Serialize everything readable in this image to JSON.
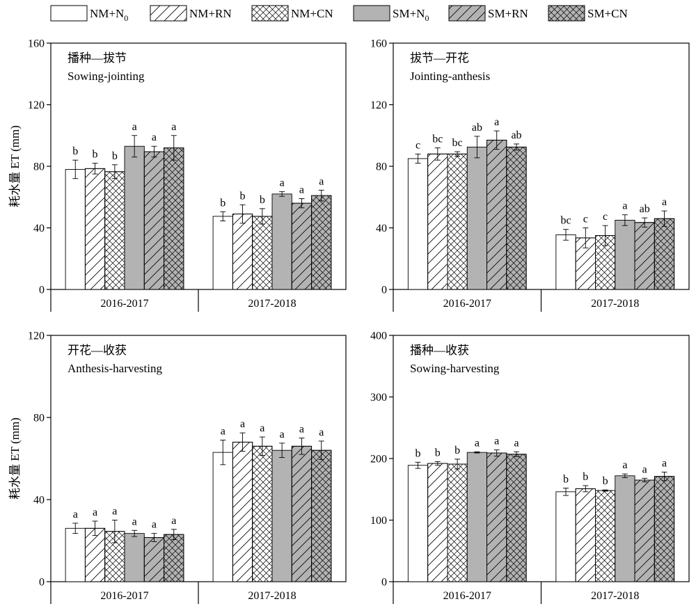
{
  "legend": [
    {
      "name": "NM+N",
      "sub": "0",
      "fill": "white"
    },
    {
      "name": "NM+RN",
      "sub": "",
      "fill": "hatch-white"
    },
    {
      "name": "NM+CN",
      "sub": "",
      "fill": "cross-white"
    },
    {
      "name": "SM+N",
      "sub": "0",
      "fill": "gray"
    },
    {
      "name": "SM+RN",
      "sub": "",
      "fill": "hatch-gray"
    },
    {
      "name": "SM+CN",
      "sub": "",
      "fill": "cross-gray"
    }
  ],
  "colors": {
    "gray_fill": "#b3b3b3",
    "axis": "#000000",
    "background": "#ffffff"
  },
  "chart_data": [
    {
      "type": "bar",
      "title": "播种—拔节",
      "subtitle": "Sowing-jointing",
      "ylabel": "耗水量 ET (mm)",
      "ylim": [
        0,
        160
      ],
      "yticks": [
        0,
        40,
        80,
        120,
        160
      ],
      "categories": [
        "2016-2017",
        "2017-2018"
      ],
      "series": [
        {
          "name": "NM+N0",
          "values": [
            78,
            47.5
          ],
          "errors": [
            6,
            3
          ],
          "letters": [
            "b",
            "b"
          ]
        },
        {
          "name": "NM+RN",
          "values": [
            78.5,
            49
          ],
          "errors": [
            3.5,
            6
          ],
          "letters": [
            "b",
            "b"
          ]
        },
        {
          "name": "NM+CN",
          "values": [
            76.5,
            47.5
          ],
          "errors": [
            4.5,
            5
          ],
          "letters": [
            "b",
            "b"
          ]
        },
        {
          "name": "SM+N0",
          "values": [
            93,
            62
          ],
          "errors": [
            7,
            1.5
          ],
          "letters": [
            "a",
            "a"
          ]
        },
        {
          "name": "SM+RN",
          "values": [
            89.5,
            56
          ],
          "errors": [
            3.5,
            3
          ],
          "letters": [
            "a",
            "a"
          ]
        },
        {
          "name": "SM+CN",
          "values": [
            92,
            61
          ],
          "errors": [
            8,
            3.5
          ],
          "letters": [
            "a",
            "a"
          ]
        }
      ]
    },
    {
      "type": "bar",
      "title": "拔节—开花",
      "subtitle": "Jointing-anthesis",
      "ylabel": "",
      "ylim": [
        0,
        160
      ],
      "yticks": [
        0,
        40,
        80,
        120,
        160
      ],
      "categories": [
        "2016-2017",
        "2017-2018"
      ],
      "series": [
        {
          "name": "NM+N0",
          "values": [
            85,
            35.5
          ],
          "errors": [
            3,
            3.5
          ],
          "letters": [
            "c",
            "bc"
          ]
        },
        {
          "name": "NM+RN",
          "values": [
            88,
            33.5
          ],
          "errors": [
            4,
            6.5
          ],
          "letters": [
            "bc",
            "c"
          ]
        },
        {
          "name": "NM+CN",
          "values": [
            88,
            35
          ],
          "errors": [
            1.5,
            6.5
          ],
          "letters": [
            "bc",
            "c"
          ]
        },
        {
          "name": "SM+N0",
          "values": [
            92.5,
            45
          ],
          "errors": [
            7,
            3.5
          ],
          "letters": [
            "ab",
            "a"
          ]
        },
        {
          "name": "SM+RN",
          "values": [
            97,
            43.5
          ],
          "errors": [
            6,
            3
          ],
          "letters": [
            "a",
            "ab"
          ]
        },
        {
          "name": "SM+CN",
          "values": [
            92.5,
            46
          ],
          "errors": [
            2,
            5
          ],
          "letters": [
            "ab",
            "a"
          ]
        }
      ]
    },
    {
      "type": "bar",
      "title": "开花—收获",
      "subtitle": "Anthesis-harvesting",
      "ylabel": "耗水量 ET (mm)",
      "ylim": [
        0,
        120
      ],
      "yticks": [
        0,
        40,
        80,
        120
      ],
      "categories": [
        "2016-2017",
        "2017-2018"
      ],
      "series": [
        {
          "name": "NM+N0",
          "values": [
            26,
            63
          ],
          "errors": [
            2.5,
            6
          ],
          "letters": [
            "a",
            "a"
          ]
        },
        {
          "name": "NM+RN",
          "values": [
            26,
            68
          ],
          "errors": [
            3.5,
            4.5
          ],
          "letters": [
            "a",
            "a"
          ]
        },
        {
          "name": "NM+CN",
          "values": [
            24.5,
            66
          ],
          "errors": [
            5.5,
            4.5
          ],
          "letters": [
            "a",
            "a"
          ]
        },
        {
          "name": "SM+N0",
          "values": [
            23.5,
            64
          ],
          "errors": [
            1.5,
            3.5
          ],
          "letters": [
            "a",
            "a"
          ]
        },
        {
          "name": "SM+RN",
          "values": [
            21.5,
            66
          ],
          "errors": [
            2,
            4
          ],
          "letters": [
            "a",
            "a"
          ]
        },
        {
          "name": "SM+CN",
          "values": [
            23,
            64
          ],
          "errors": [
            2.5,
            4.5
          ],
          "letters": [
            "a",
            "a"
          ]
        }
      ]
    },
    {
      "type": "bar",
      "title": "播种—收获",
      "subtitle": "Sowing-harvesting",
      "ylabel": "",
      "ylim": [
        0,
        400
      ],
      "yticks": [
        0,
        100,
        200,
        300,
        400
      ],
      "categories": [
        "2016-2017",
        "2017-2018"
      ],
      "series": [
        {
          "name": "NM+N0",
          "values": [
            189,
            146
          ],
          "errors": [
            5,
            6
          ],
          "letters": [
            "b",
            "b"
          ]
        },
        {
          "name": "NM+RN",
          "values": [
            192,
            151
          ],
          "errors": [
            3,
            5
          ],
          "letters": [
            "b",
            "b"
          ]
        },
        {
          "name": "NM+CN",
          "values": [
            191,
            148
          ],
          "errors": [
            8,
            1
          ],
          "letters": [
            "b",
            "b"
          ]
        },
        {
          "name": "SM+N0",
          "values": [
            210,
            172
          ],
          "errors": [
            1,
            3
          ],
          "letters": [
            "a",
            "a"
          ]
        },
        {
          "name": "SM+RN",
          "values": [
            209,
            165
          ],
          "errors": [
            5,
            3
          ],
          "letters": [
            "a",
            "a"
          ]
        },
        {
          "name": "SM+CN",
          "values": [
            207,
            171
          ],
          "errors": [
            4,
            7
          ],
          "letters": [
            "a",
            "a"
          ]
        }
      ]
    }
  ]
}
